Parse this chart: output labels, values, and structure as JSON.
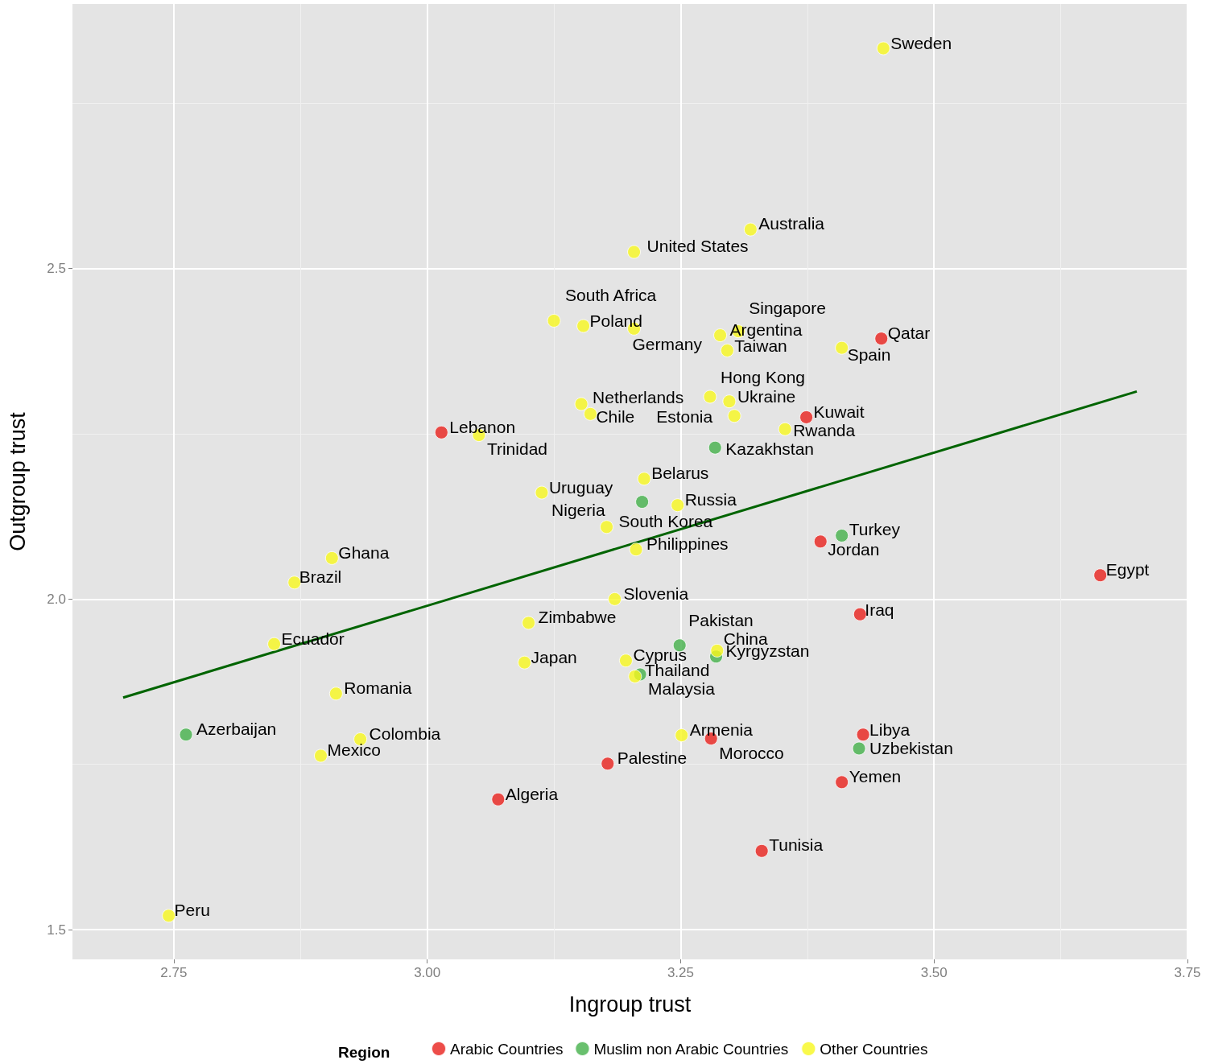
{
  "chart_data": {
    "type": "scatter",
    "xlabel": "Ingroup trust",
    "ylabel": "Outgroup trust",
    "legend_title": "Region",
    "xlim": [
      2.65,
      3.75
    ],
    "ylim": [
      1.455,
      2.9
    ],
    "xticks": [
      {
        "value": 2.75,
        "label": "2.75"
      },
      {
        "value": 3,
        "label": "3.00"
      },
      {
        "value": 3.25,
        "label": "3.25"
      },
      {
        "value": 3.5,
        "label": "3.50"
      },
      {
        "value": 3.75,
        "label": "3.75"
      }
    ],
    "yticks": [
      {
        "value": 1.5,
        "label": "1.5"
      },
      {
        "value": 2,
        "label": "2.0"
      },
      {
        "value": 2.5,
        "label": "2.5"
      }
    ],
    "grid": true,
    "legend": "bottom",
    "marker": "circle",
    "series": [
      {
        "name": "Arabic Countries",
        "color": "#e8201c",
        "x": [
          3.448,
          3.374,
          3.014,
          3.388,
          3.664,
          3.427,
          3.28,
          3.178,
          3.43,
          3.409,
          3.07,
          3.33
        ],
        "values": [
          2.394,
          2.275,
          2.252,
          2.087,
          2.036,
          1.977,
          1.789,
          1.751,
          1.795,
          1.723,
          1.697,
          1.619
        ]
      },
      {
        "name": "Muslim non Arabic Countries",
        "color": "#44b04a",
        "x": [
          3.284,
          3.212,
          3.409,
          3.249,
          3.285,
          3.21,
          2.762,
          3.426
        ],
        "values": [
          2.229,
          2.147,
          2.096,
          1.93,
          1.913,
          1.886,
          1.795,
          1.774
        ]
      },
      {
        "name": "Other Countries",
        "color": "#f7f71e",
        "x": [
          3.45,
          3.319,
          3.204,
          3.125,
          3.154,
          3.204,
          3.307,
          3.289,
          3.296,
          3.409,
          3.279,
          3.298,
          3.303,
          3.353,
          3.152,
          3.161,
          3.051,
          3.214,
          3.113,
          3.247,
          3.177,
          3.206,
          2.906,
          2.869,
          3.185,
          3.1,
          2.849,
          3.286,
          3.096,
          3.196,
          3.205,
          2.91,
          2.934,
          2.895,
          3.251,
          2.745
        ],
        "values": [
          2.833,
          2.559,
          2.525,
          2.421,
          2.413,
          2.409,
          2.405,
          2.399,
          2.376,
          2.38,
          2.306,
          2.299,
          2.277,
          2.257,
          2.295,
          2.28,
          2.248,
          2.182,
          2.161,
          2.142,
          2.109,
          2.075,
          2.062,
          2.025,
          2.0,
          1.964,
          1.932,
          1.922,
          1.904,
          1.907,
          1.883,
          1.857,
          1.788,
          1.763,
          1.794,
          1.521
        ]
      },
      {
        "type": "line",
        "color": "#006400",
        "marker": "none",
        "line_style": "solid",
        "x": [
          2.7,
          3.7
        ],
        "values": [
          1.851,
          2.314
        ]
      }
    ],
    "annotations": [
      {
        "text": "Qatar",
        "x": 3.448,
        "y": 2.394
      },
      {
        "text": "Kuwait",
        "x": 3.374,
        "y": 2.275
      },
      {
        "text": "Lebanon",
        "x": 3.014,
        "y": 2.252
      },
      {
        "text": "Jordan",
        "x": 3.388,
        "y": 2.087
      },
      {
        "text": "Egypt",
        "x": 3.664,
        "y": 2.036
      },
      {
        "text": "Iraq",
        "x": 3.427,
        "y": 1.977
      },
      {
        "text": "Morocco",
        "x": 3.28,
        "y": 1.789
      },
      {
        "text": "Palestine",
        "x": 3.178,
        "y": 1.751
      },
      {
        "text": "Libya",
        "x": 3.43,
        "y": 1.795
      },
      {
        "text": "Yemen",
        "x": 3.409,
        "y": 1.723
      },
      {
        "text": "Algeria",
        "x": 3.07,
        "y": 1.697
      },
      {
        "text": "Tunisia",
        "x": 3.33,
        "y": 1.619
      },
      {
        "text": "Kazakhstan",
        "x": 3.284,
        "y": 2.229
      },
      {
        "text": "Nigeria",
        "x": 3.212,
        "y": 2.147
      },
      {
        "text": "Turkey",
        "x": 3.409,
        "y": 2.096
      },
      {
        "text": "Pakistan",
        "x": 3.249,
        "y": 1.93
      },
      {
        "text": "Kyrgyzstan",
        "x": 3.285,
        "y": 1.913
      },
      {
        "text": "Malaysia",
        "x": 3.21,
        "y": 1.886
      },
      {
        "text": "Azerbaijan",
        "x": 2.762,
        "y": 1.795
      },
      {
        "text": "Uzbekistan",
        "x": 3.426,
        "y": 1.774
      },
      {
        "text": "Sweden",
        "x": 3.45,
        "y": 2.833
      },
      {
        "text": "Australia",
        "x": 3.319,
        "y": 2.559
      },
      {
        "text": "United States",
        "x": 3.204,
        "y": 2.525
      },
      {
        "text": "South Africa",
        "x": 3.125,
        "y": 2.421
      },
      {
        "text": "Poland",
        "x": 3.154,
        "y": 2.413
      },
      {
        "text": "Germany",
        "x": 3.204,
        "y": 2.409
      },
      {
        "text": "Singapore",
        "x": 3.307,
        "y": 2.405
      },
      {
        "text": "Argentina",
        "x": 3.289,
        "y": 2.399
      },
      {
        "text": "Taiwan",
        "x": 3.296,
        "y": 2.376
      },
      {
        "text": "Spain",
        "x": 3.409,
        "y": 2.38
      },
      {
        "text": "Hong Kong",
        "x": 3.279,
        "y": 2.306
      },
      {
        "text": "Ukraine",
        "x": 3.298,
        "y": 2.299
      },
      {
        "text": "Estonia",
        "x": 3.303,
        "y": 2.277
      },
      {
        "text": "Rwanda",
        "x": 3.353,
        "y": 2.257
      },
      {
        "text": "Netherlands",
        "x": 3.152,
        "y": 2.295
      },
      {
        "text": "Chile",
        "x": 3.161,
        "y": 2.28
      },
      {
        "text": "Trinidad",
        "x": 3.051,
        "y": 2.248
      },
      {
        "text": "Belarus",
        "x": 3.214,
        "y": 2.182
      },
      {
        "text": "Uruguay",
        "x": 3.113,
        "y": 2.161
      },
      {
        "text": "Russia",
        "x": 3.247,
        "y": 2.142
      },
      {
        "text": "South Korea",
        "x": 3.177,
        "y": 2.109
      },
      {
        "text": "Philippines",
        "x": 3.206,
        "y": 2.075
      },
      {
        "text": "Ghana",
        "x": 2.906,
        "y": 2.062
      },
      {
        "text": "Brazil",
        "x": 2.869,
        "y": 2.025
      },
      {
        "text": "Slovenia",
        "x": 3.185,
        "y": 2.0
      },
      {
        "text": "Zimbabwe",
        "x": 3.1,
        "y": 1.964
      },
      {
        "text": "Ecuador",
        "x": 2.849,
        "y": 1.932
      },
      {
        "text": "China",
        "x": 3.286,
        "y": 1.922
      },
      {
        "text": "Japan",
        "x": 3.096,
        "y": 1.904
      },
      {
        "text": "Cyprus",
        "x": 3.196,
        "y": 1.907
      },
      {
        "text": "Thailand",
        "x": 3.205,
        "y": 1.883
      },
      {
        "text": "Romania",
        "x": 2.91,
        "y": 1.857
      },
      {
        "text": "Colombia",
        "x": 2.934,
        "y": 1.788
      },
      {
        "text": "Mexico",
        "x": 2.895,
        "y": 1.763
      },
      {
        "text": "Armenia",
        "x": 3.251,
        "y": 1.794
      },
      {
        "text": "Peru",
        "x": 2.745,
        "y": 1.521
      }
    ]
  }
}
